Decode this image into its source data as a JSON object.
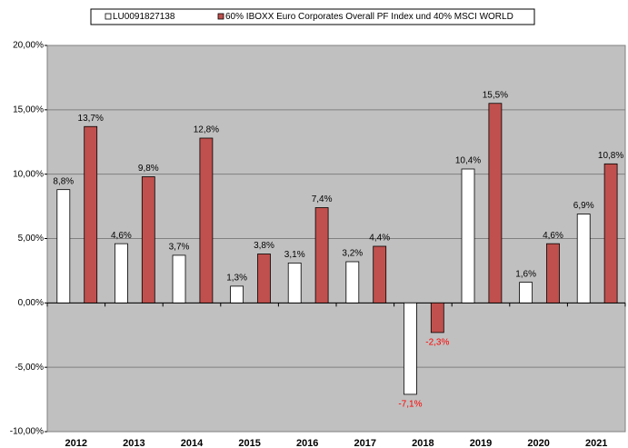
{
  "chart_data": {
    "type": "bar",
    "categories": [
      "2012",
      "2013",
      "2014",
      "2015",
      "2016",
      "2017",
      "2018",
      "2019",
      "2020",
      "2021"
    ],
    "series": [
      {
        "name": "LU0091827138",
        "color": "#ffffff",
        "values": [
          8.8,
          4.6,
          3.7,
          1.3,
          3.1,
          3.2,
          -7.1,
          10.4,
          1.6,
          6.9
        ],
        "value_labels": [
          "8,8%",
          "4,6%",
          "3,7%",
          "1,3%",
          "3,1%",
          "3,2%",
          "-7,1%",
          "10,4%",
          "1,6%",
          "6,9%"
        ]
      },
      {
        "name": "60% IBOXX Euro Corporates Overall PF Index und 40% MSCI WORLD",
        "color": "#c0504d",
        "values": [
          13.7,
          9.8,
          12.8,
          3.8,
          7.4,
          4.4,
          -2.3,
          15.5,
          4.6,
          10.8
        ],
        "value_labels": [
          "13,7%",
          "9,8%",
          "12,8%",
          "3,8%",
          "7,4%",
          "4,4%",
          "-2,3%",
          "15,5%",
          "4,6%",
          "10,8%"
        ]
      }
    ],
    "ylim": [
      -10,
      20
    ],
    "yticks": [
      {
        "value": -10,
        "label": "-10,00%"
      },
      {
        "value": -5,
        "label": "-5,00%"
      },
      {
        "value": 0,
        "label": "0,00%"
      },
      {
        "value": 5,
        "label": "5,00%"
      },
      {
        "value": 10,
        "label": "10,00%"
      },
      {
        "value": 15,
        "label": "15,00%"
      },
      {
        "value": 20,
        "label": "20,00%"
      }
    ],
    "grid": true,
    "legend": "top"
  }
}
